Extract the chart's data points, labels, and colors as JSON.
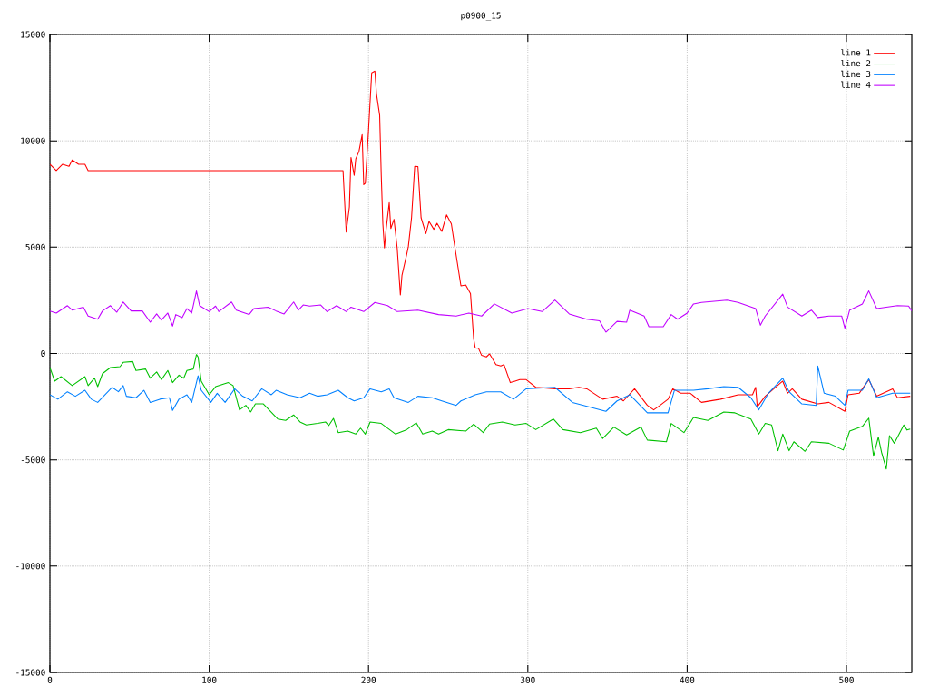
{
  "chart_data": {
    "type": "line",
    "title": "p0900_15",
    "xlim": [
      0,
      541
    ],
    "xticks": [
      0,
      100,
      200,
      300,
      400,
      500
    ],
    "ylim": [
      -15000,
      15000
    ],
    "yticks": [
      -15000,
      -10000,
      -5000,
      0,
      5000,
      10000,
      15000
    ],
    "grid": true,
    "legend": "top right",
    "marker": "none",
    "line_style": "solid",
    "series": [
      {
        "name": "line 1",
        "color": "#ff0000",
        "x": [
          0,
          4,
          8,
          12,
          14,
          18,
          22,
          24,
          184,
          186,
          188,
          189,
          191,
          192,
          194,
          196,
          197,
          198,
          200,
          202,
          204,
          205,
          207,
          208,
          209,
          210,
          211,
          213,
          214,
          216,
          218,
          220,
          221,
          224,
          225,
          227,
          229,
          231,
          233,
          236,
          238,
          241,
          243,
          246,
          249,
          252,
          254,
          258,
          261,
          264,
          266,
          267,
          269,
          271,
          274,
          276,
          280,
          283,
          285,
          289,
          292,
          295,
          299,
          305,
          317,
          326,
          332,
          337,
          347,
          356,
          360,
          367,
          375,
          379,
          383,
          388,
          391,
          396,
          402,
          409,
          421,
          432,
          441,
          443,
          444,
          449,
          460,
          463,
          466,
          472,
          482,
          489,
          499,
          501,
          508,
          514,
          519,
          529,
          532,
          540
        ],
        "values": [
          8900,
          8600,
          8900,
          8800,
          9100,
          8900,
          8900,
          8600,
          8600,
          5710,
          6890,
          9220,
          8380,
          9150,
          9500,
          10290,
          7940,
          8010,
          10500,
          13200,
          13280,
          12210,
          11210,
          8370,
          6090,
          4960,
          5810,
          7090,
          5880,
          6310,
          4960,
          2750,
          3680,
          4670,
          5030,
          6380,
          8800,
          8790,
          6380,
          5640,
          6210,
          5840,
          6120,
          5740,
          6520,
          6090,
          5100,
          3180,
          3220,
          2820,
          690,
          260,
          250,
          -90,
          -160,
          -20,
          -520,
          -590,
          -520,
          -1370,
          -1300,
          -1230,
          -1230,
          -1590,
          -1660,
          -1660,
          -1590,
          -1660,
          -2150,
          -2010,
          -2230,
          -1660,
          -2440,
          -2650,
          -2440,
          -2150,
          -1660,
          -1870,
          -1870,
          -2300,
          -2150,
          -1940,
          -1940,
          -1590,
          -2510,
          -2010,
          -1300,
          -1870,
          -1660,
          -2150,
          -2370,
          -2300,
          -2720,
          -1940,
          -1870,
          -1230,
          -2010,
          -1660,
          -2080,
          -2010
        ]
      },
      {
        "name": "line 2",
        "color": "#00c000",
        "x": [
          0,
          3,
          7,
          14,
          22,
          24,
          28,
          30,
          33,
          38,
          44,
          46,
          52,
          54,
          60,
          63,
          67,
          70,
          74,
          77,
          81,
          84,
          86,
          90,
          92,
          93,
          95,
          100,
          104,
          112,
          115,
          119,
          123,
          126,
          129,
          134,
          143,
          148,
          153,
          157,
          161,
          168,
          173,
          175,
          178,
          181,
          187,
          192,
          195,
          198,
          201,
          208,
          217,
          224,
          230,
          234,
          240,
          244,
          250,
          261,
          266,
          272,
          276,
          284,
          292,
          299,
          305,
          316,
          322,
          333,
          343,
          347,
          354,
          362,
          371,
          375,
          387,
          390,
          398,
          404,
          413,
          423,
          430,
          440,
          445,
          449,
          453,
          457,
          460,
          464,
          467,
          474,
          478,
          489,
          498,
          502,
          510,
          514,
          517,
          520,
          522,
          525,
          527,
          530,
          536,
          538,
          540
        ],
        "values": [
          -660,
          -1300,
          -1090,
          -1510,
          -1090,
          -1510,
          -1160,
          -1560,
          -950,
          -660,
          -620,
          -420,
          -380,
          -800,
          -730,
          -1160,
          -870,
          -1230,
          -800,
          -1370,
          -1020,
          -1160,
          -800,
          -730,
          -50,
          -160,
          -1300,
          -1940,
          -1560,
          -1370,
          -1510,
          -2650,
          -2440,
          -2750,
          -2370,
          -2370,
          -3080,
          -3150,
          -2890,
          -3220,
          -3360,
          -3290,
          -3220,
          -3390,
          -3050,
          -3720,
          -3650,
          -3790,
          -3510,
          -3790,
          -3220,
          -3290,
          -3790,
          -3580,
          -3260,
          -3790,
          -3650,
          -3790,
          -3580,
          -3650,
          -3320,
          -3720,
          -3320,
          -3220,
          -3360,
          -3290,
          -3580,
          -3080,
          -3580,
          -3720,
          -3510,
          -4000,
          -3460,
          -3830,
          -3460,
          -4070,
          -4150,
          -3290,
          -3720,
          -3010,
          -3150,
          -2750,
          -2790,
          -3080,
          -3790,
          -3290,
          -3360,
          -4570,
          -3790,
          -4570,
          -4150,
          -4600,
          -4150,
          -4220,
          -4540,
          -3650,
          -3430,
          -3040,
          -4830,
          -3930,
          -4640,
          -5430,
          -3860,
          -4220,
          -3360,
          -3600,
          -3550
        ]
      },
      {
        "name": "line 3",
        "color": "#0080ff",
        "x": [
          0,
          5,
          11,
          16,
          22,
          26,
          30,
          39,
          43,
          46,
          48,
          54,
          59,
          63,
          69,
          75,
          77,
          81,
          86,
          89,
          93,
          95,
          101,
          105,
          110,
          116,
          121,
          127,
          133,
          139,
          142,
          149,
          157,
          163,
          168,
          174,
          181,
          187,
          191,
          197,
          201,
          208,
          213,
          216,
          225,
          231,
          240,
          246,
          255,
          258,
          267,
          274,
          283,
          291,
          299,
          317,
          328,
          335,
          349,
          356,
          364,
          375,
          388,
          392,
          404,
          413,
          423,
          432,
          440,
          445,
          451,
          460,
          464,
          472,
          481,
          482,
          486,
          493,
          499,
          501,
          510,
          514,
          519,
          529,
          540
        ],
        "values": [
          -1940,
          -2150,
          -1800,
          -2010,
          -1730,
          -2150,
          -2300,
          -1590,
          -1800,
          -1510,
          -2010,
          -2080,
          -1730,
          -2300,
          -2150,
          -2080,
          -2680,
          -2150,
          -1940,
          -2300,
          -1050,
          -1730,
          -2300,
          -1870,
          -2300,
          -1660,
          -2010,
          -2230,
          -1660,
          -1940,
          -1730,
          -1940,
          -2080,
          -1870,
          -2010,
          -1940,
          -1730,
          -2080,
          -2230,
          -2080,
          -1660,
          -1800,
          -1660,
          -2080,
          -2300,
          -2010,
          -2080,
          -2230,
          -2440,
          -2230,
          -1940,
          -1800,
          -1800,
          -2150,
          -1660,
          -1590,
          -2300,
          -2440,
          -2720,
          -2230,
          -1940,
          -2790,
          -2790,
          -1730,
          -1730,
          -1660,
          -1560,
          -1590,
          -2080,
          -2650,
          -1870,
          -1160,
          -1800,
          -2370,
          -2440,
          -590,
          -1870,
          -2010,
          -2440,
          -1730,
          -1730,
          -1190,
          -2080,
          -1870,
          -1870
        ]
      },
      {
        "name": "line 4",
        "color": "#c000ff",
        "x": [
          0,
          4,
          11,
          14,
          21,
          24,
          30,
          33,
          38,
          42,
          46,
          51,
          58,
          63,
          67,
          70,
          74,
          77,
          79,
          83,
          86,
          89,
          92,
          94,
          100,
          104,
          106,
          114,
          117,
          125,
          128,
          137,
          142,
          147,
          153,
          156,
          159,
          163,
          170,
          174,
          180,
          186,
          189,
          197,
          204,
          212,
          218,
          231,
          244,
          255,
          263,
          271,
          279,
          290,
          300,
          309,
          317,
          326,
          337,
          345,
          349,
          356,
          362,
          364,
          373,
          376,
          385,
          390,
          394,
          400,
          404,
          409,
          425,
          432,
          443,
          446,
          449,
          460,
          463,
          472,
          478,
          482,
          489,
          497,
          499,
          502,
          510,
          514,
          519,
          532,
          539,
          541
        ],
        "values": [
          2000,
          1900,
          2250,
          2040,
          2180,
          1760,
          1610,
          2000,
          2250,
          1940,
          2420,
          2000,
          2000,
          1470,
          1860,
          1570,
          1900,
          1290,
          1830,
          1690,
          2110,
          1900,
          2940,
          2250,
          1970,
          2230,
          1970,
          2420,
          2040,
          1830,
          2110,
          2180,
          2000,
          1860,
          2420,
          2040,
          2280,
          2230,
          2280,
          1970,
          2250,
          1970,
          2180,
          1970,
          2400,
          2250,
          1970,
          2040,
          1830,
          1760,
          1900,
          1760,
          2330,
          1900,
          2110,
          1970,
          2510,
          1860,
          1610,
          1540,
          1000,
          1510,
          1470,
          2040,
          1760,
          1260,
          1260,
          1830,
          1610,
          1900,
          2330,
          2400,
          2510,
          2400,
          2110,
          1330,
          1760,
          2790,
          2180,
          1760,
          2040,
          1690,
          1760,
          1760,
          1190,
          2040,
          2330,
          2940,
          2110,
          2250,
          2230,
          2000
        ]
      }
    ]
  }
}
